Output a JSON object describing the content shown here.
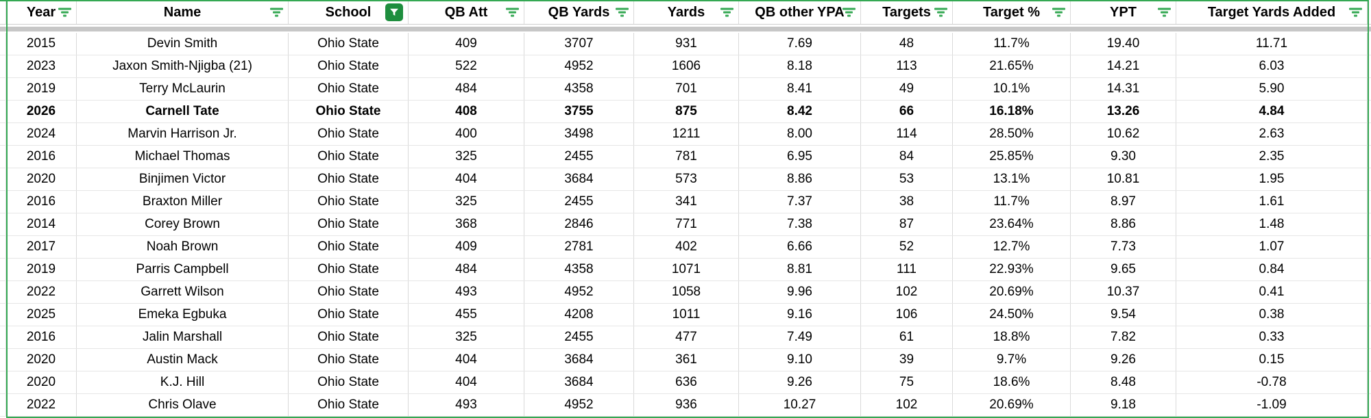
{
  "table": {
    "columns": [
      {
        "label": "Year",
        "filter": "lines"
      },
      {
        "label": "Name",
        "filter": "lines"
      },
      {
        "label": "School",
        "filter": "funnel-active"
      },
      {
        "label": "QB Att",
        "filter": "lines"
      },
      {
        "label": "QB Yards",
        "filter": "lines"
      },
      {
        "label": "Yards",
        "filter": "lines"
      },
      {
        "label": "QB other YPA",
        "filter": "lines"
      },
      {
        "label": "Targets",
        "filter": "lines"
      },
      {
        "label": "Target %",
        "filter": "lines"
      },
      {
        "label": "YPT",
        "filter": "lines"
      },
      {
        "label": "Target Yards Added",
        "filter": "lines"
      }
    ],
    "rows": [
      {
        "bold": false,
        "cells": [
          "2015",
          "Devin Smith",
          "Ohio State",
          "409",
          "3707",
          "931",
          "7.69",
          "48",
          "11.7%",
          "19.40",
          "11.71"
        ]
      },
      {
        "bold": false,
        "cells": [
          "2023",
          "Jaxon Smith-Njigba (21)",
          "Ohio State",
          "522",
          "4952",
          "1606",
          "8.18",
          "113",
          "21.65%",
          "14.21",
          "6.03"
        ]
      },
      {
        "bold": false,
        "cells": [
          "2019",
          "Terry McLaurin",
          "Ohio State",
          "484",
          "4358",
          "701",
          "8.41",
          "49",
          "10.1%",
          "14.31",
          "5.90"
        ]
      },
      {
        "bold": true,
        "cells": [
          "2026",
          "Carnell Tate",
          "Ohio State",
          "408",
          "3755",
          "875",
          "8.42",
          "66",
          "16.18%",
          "13.26",
          "4.84"
        ]
      },
      {
        "bold": false,
        "cells": [
          "2024",
          "Marvin Harrison Jr.",
          "Ohio State",
          "400",
          "3498",
          "1211",
          "8.00",
          "114",
          "28.50%",
          "10.62",
          "2.63"
        ]
      },
      {
        "bold": false,
        "cells": [
          "2016",
          "Michael Thomas",
          "Ohio State",
          "325",
          "2455",
          "781",
          "6.95",
          "84",
          "25.85%",
          "9.30",
          "2.35"
        ]
      },
      {
        "bold": false,
        "cells": [
          "2020",
          "Binjimen Victor",
          "Ohio State",
          "404",
          "3684",
          "573",
          "8.86",
          "53",
          "13.1%",
          "10.81",
          "1.95"
        ]
      },
      {
        "bold": false,
        "cells": [
          "2016",
          "Braxton Miller",
          "Ohio State",
          "325",
          "2455",
          "341",
          "7.37",
          "38",
          "11.7%",
          "8.97",
          "1.61"
        ]
      },
      {
        "bold": false,
        "cells": [
          "2014",
          "Corey Brown",
          "Ohio State",
          "368",
          "2846",
          "771",
          "7.38",
          "87",
          "23.64%",
          "8.86",
          "1.48"
        ]
      },
      {
        "bold": false,
        "cells": [
          "2017",
          "Noah Brown",
          "Ohio State",
          "409",
          "2781",
          "402",
          "6.66",
          "52",
          "12.7%",
          "7.73",
          "1.07"
        ]
      },
      {
        "bold": false,
        "cells": [
          "2019",
          "Parris Campbell",
          "Ohio State",
          "484",
          "4358",
          "1071",
          "8.81",
          "111",
          "22.93%",
          "9.65",
          "0.84"
        ]
      },
      {
        "bold": false,
        "cells": [
          "2022",
          "Garrett Wilson",
          "Ohio State",
          "493",
          "4952",
          "1058",
          "9.96",
          "102",
          "20.69%",
          "10.37",
          "0.41"
        ]
      },
      {
        "bold": false,
        "cells": [
          "2025",
          "Emeka Egbuka",
          "Ohio State",
          "455",
          "4208",
          "1011",
          "9.16",
          "106",
          "24.50%",
          "9.54",
          "0.38"
        ]
      },
      {
        "bold": false,
        "cells": [
          "2016",
          "Jalin Marshall",
          "Ohio State",
          "325",
          "2455",
          "477",
          "7.49",
          "61",
          "18.8%",
          "7.82",
          "0.33"
        ]
      },
      {
        "bold": false,
        "cells": [
          "2020",
          "Austin Mack",
          "Ohio State",
          "404",
          "3684",
          "361",
          "9.10",
          "39",
          "9.7%",
          "9.26",
          "0.15"
        ]
      },
      {
        "bold": false,
        "cells": [
          "2020",
          "K.J. Hill",
          "Ohio State",
          "404",
          "3684",
          "636",
          "9.26",
          "75",
          "18.6%",
          "8.48",
          "-0.78"
        ]
      },
      {
        "bold": false,
        "cells": [
          "2022",
          "Chris Olave",
          "Ohio State",
          "493",
          "4952",
          "936",
          "10.27",
          "102",
          "20.69%",
          "9.18",
          "-1.09"
        ]
      }
    ]
  },
  "colors": {
    "accent_green": "#34a853",
    "funnel_active_bg": "#1e8e3e",
    "grid_vertical": "#d9d9d9",
    "grid_horizontal": "#e6e6e6",
    "freeze_band_gray": "#c7c7c7"
  }
}
